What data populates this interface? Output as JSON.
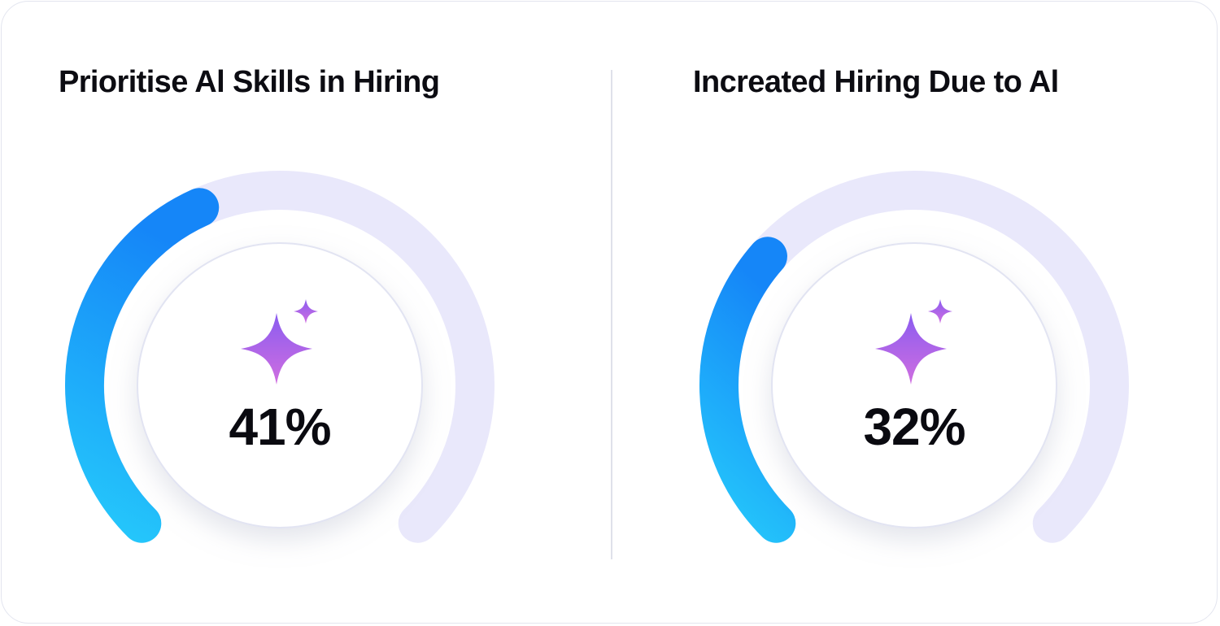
{
  "chart_data": [
    {
      "type": "gauge",
      "title": "Prioritise Al Skills in Hiring",
      "value": 41,
      "max": 100,
      "value_label": "41%",
      "icon": "sparkle-icon"
    },
    {
      "type": "gauge",
      "title": "Increated Hiring Due to Al",
      "value": 32,
      "max": 100,
      "value_label": "32%",
      "icon": "sparkle-icon"
    }
  ],
  "colors": {
    "track": "#e9e8fb",
    "progress_start": "#25c8fb",
    "progress_end": "#1586f8",
    "sparkle_top": "#8a5cf0",
    "sparkle_bottom": "#d06ee0",
    "text": "#0c0c12"
  }
}
